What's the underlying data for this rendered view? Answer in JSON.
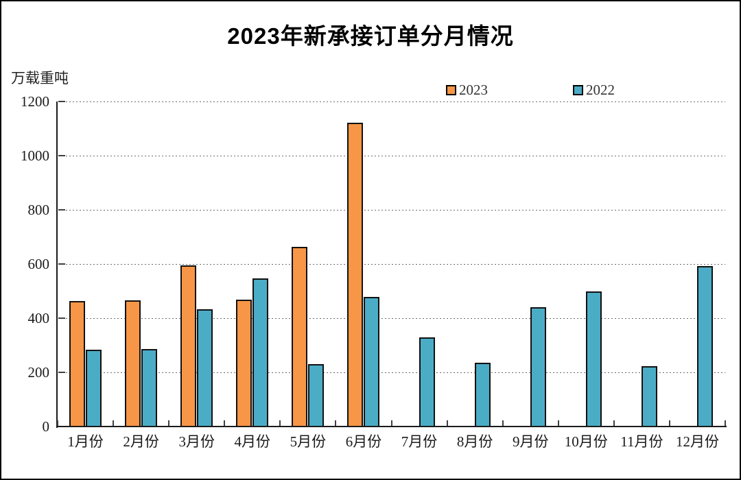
{
  "chart": {
    "title": "2023年新承接订单分月情况",
    "unit_label": "万载重吨"
  },
  "colors": {
    "series_2023": "#F79646",
    "series_2022": "#4BACC6",
    "bar_border": "#111111",
    "axis": "#1a1a1a",
    "gridline": "#6b6b6b",
    "text": "#1a1a1a"
  },
  "chart_data": {
    "type": "bar",
    "title": "2023年新承接订单分月情况",
    "ylabel": "万载重吨",
    "categories": [
      "1月份",
      "2月份",
      "3月份",
      "4月份",
      "5月份",
      "6月份",
      "7月份",
      "8月份",
      "9月份",
      "10月份",
      "11月份",
      "12月份"
    ],
    "series": [
      {
        "name": "2023",
        "color": "#F79646",
        "values": [
          460,
          464,
          592,
          466,
          660,
          1120,
          null,
          null,
          null,
          null,
          null,
          null
        ]
      },
      {
        "name": "2022",
        "color": "#4BACC6",
        "values": [
          281,
          284,
          430,
          545,
          228,
          476,
          326,
          232,
          438,
          496,
          220,
          591
        ]
      }
    ],
    "ylim": [
      0,
      1200
    ],
    "yticks": [
      0,
      200,
      400,
      600,
      800,
      1000,
      1200
    ],
    "grid": "horizontal-dashed",
    "legend_position": "top-right-above-plot"
  }
}
